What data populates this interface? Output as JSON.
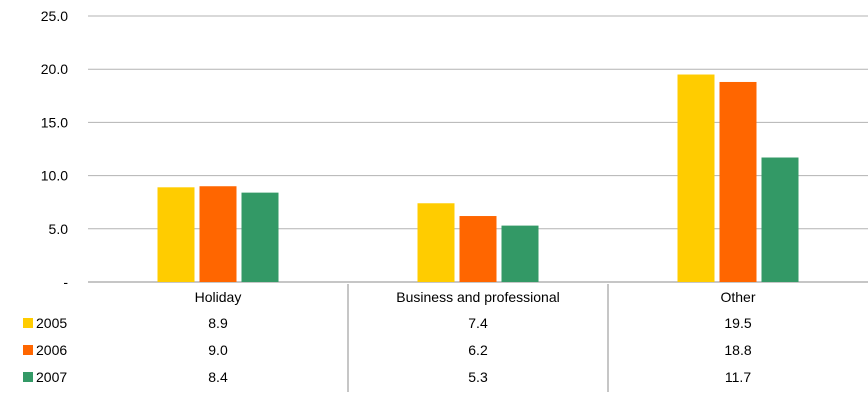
{
  "chart_data": {
    "type": "bar",
    "categories": [
      "Holiday",
      "Business and professional",
      "Other"
    ],
    "series": [
      {
        "name": "2005",
        "values": [
          8.9,
          7.4,
          19.5
        ],
        "color": "#FFCC00"
      },
      {
        "name": "2006",
        "values": [
          9.0,
          6.2,
          18.8
        ],
        "color": "#FF6600"
      },
      {
        "name": "2007",
        "values": [
          8.4,
          5.3,
          11.7
        ],
        "color": "#339966"
      }
    ],
    "value_labels": [
      [
        "8.9",
        "7.4",
        "19.5"
      ],
      [
        "9.0",
        "6.2",
        "18.8"
      ],
      [
        "8.4",
        "5.3",
        "11.7"
      ]
    ],
    "yticks": [
      0,
      5,
      10,
      15,
      20,
      25
    ],
    "ytick_labels": [
      "-",
      "5.0",
      "10.0",
      "15.0",
      "20.0",
      "25.0"
    ],
    "ylim": [
      0,
      25
    ],
    "grid": true,
    "legend": "data-table-left"
  }
}
